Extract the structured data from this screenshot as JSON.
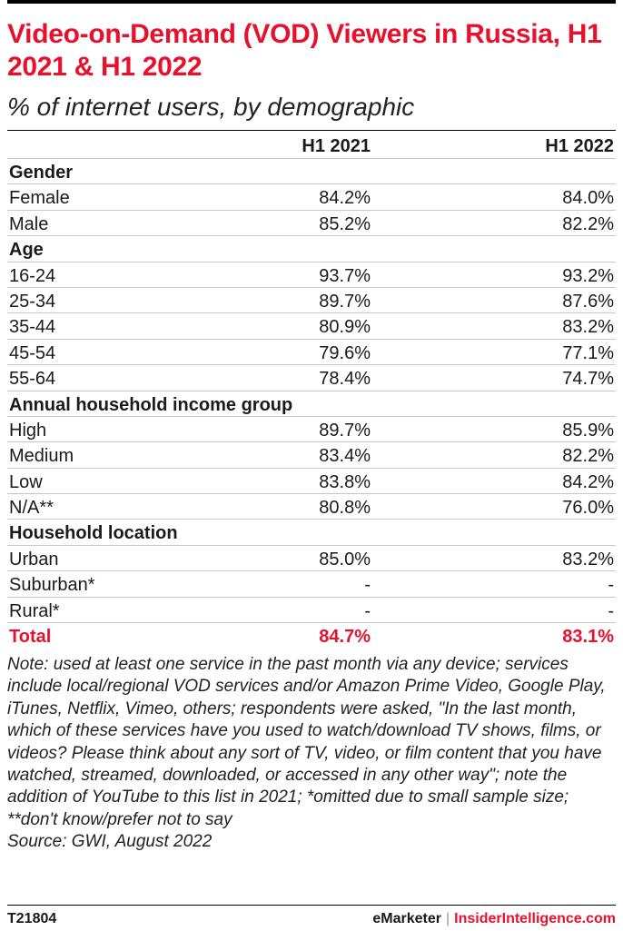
{
  "title": "Video-on-Demand (VOD) Viewers in Russia, H1 2021 & H1 2022",
  "subtitle": "% of internet users, by demographic",
  "chart_data": {
    "type": "table",
    "columns": [
      "H1 2021",
      "H1 2022"
    ],
    "sections": [
      {
        "name": "Gender",
        "rows": [
          {
            "label": "Female",
            "values": [
              "84.2%",
              "84.0%"
            ]
          },
          {
            "label": "Male",
            "values": [
              "85.2%",
              "82.2%"
            ]
          }
        ]
      },
      {
        "name": "Age",
        "rows": [
          {
            "label": "16-24",
            "values": [
              "93.7%",
              "93.2%"
            ]
          },
          {
            "label": "25-34",
            "values": [
              "89.7%",
              "87.6%"
            ]
          },
          {
            "label": "35-44",
            "values": [
              "80.9%",
              "83.2%"
            ]
          },
          {
            "label": "45-54",
            "values": [
              "79.6%",
              "77.1%"
            ]
          },
          {
            "label": "55-64",
            "values": [
              "78.4%",
              "74.7%"
            ]
          }
        ]
      },
      {
        "name": "Annual household income group",
        "rows": [
          {
            "label": "High",
            "values": [
              "89.7%",
              "85.9%"
            ]
          },
          {
            "label": "Medium",
            "values": [
              "83.4%",
              "82.2%"
            ]
          },
          {
            "label": "Low",
            "values": [
              "83.8%",
              "84.2%"
            ]
          },
          {
            "label": "N/A**",
            "values": [
              "80.8%",
              "76.0%"
            ]
          }
        ]
      },
      {
        "name": "Household location",
        "rows": [
          {
            "label": "Urban",
            "values": [
              "85.0%",
              "83.2%"
            ]
          },
          {
            "label": "Suburban*",
            "values": [
              "-",
              "-"
            ]
          },
          {
            "label": "Rural*",
            "values": [
              "-",
              "-"
            ]
          }
        ]
      }
    ],
    "total": {
      "label": "Total",
      "values": [
        "84.7%",
        "83.1%"
      ]
    }
  },
  "note": "Note: used at least one service in the past month via any device; services include local/regional VOD services and/or Amazon Prime Video, Google Play, iTunes, Netflix, Vimeo, others; respondents were asked, \"In the last month, which of these services have you used to watch/download TV shows, films, or videos? Please think about any sort of TV, video, or film content that you have watched, streamed, downloaded, or accessed in any other way\"; note the addition of YouTube to this list in 2021; *omitted due to small sample size; **don't know/prefer not to say",
  "source": "Source: GWI, August 2022",
  "footer": {
    "chart_id": "T21804",
    "brand1": "eMarketer",
    "separator": "|",
    "brand2": "InsiderIntelligence.com"
  },
  "colors": {
    "accent": "#e8112d",
    "text": "#1a1a1a",
    "rule": "#c8c8c8"
  }
}
